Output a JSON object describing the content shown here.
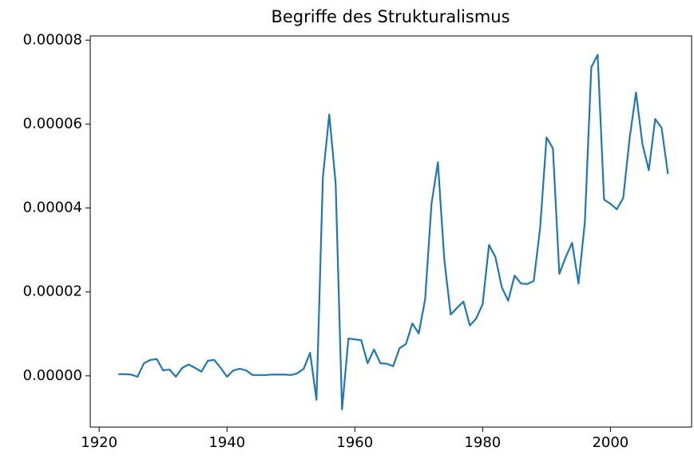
{
  "chart_data": {
    "type": "line",
    "title": "Begriffe des Strukturalismus",
    "x": [
      1923,
      1924,
      1925,
      1926,
      1927,
      1928,
      1929,
      1930,
      1931,
      1932,
      1933,
      1934,
      1935,
      1936,
      1937,
      1938,
      1939,
      1940,
      1941,
      1942,
      1943,
      1944,
      1945,
      1946,
      1947,
      1948,
      1949,
      1950,
      1951,
      1952,
      1953,
      1954,
      1955,
      1956,
      1957,
      1958,
      1959,
      1960,
      1961,
      1962,
      1963,
      1964,
      1965,
      1966,
      1967,
      1968,
      1969,
      1970,
      1971,
      1972,
      1973,
      1974,
      1975,
      1976,
      1977,
      1978,
      1979,
      1980,
      1981,
      1982,
      1983,
      1984,
      1985,
      1986,
      1987,
      1988,
      1989,
      1990,
      1991,
      1992,
      1993,
      1994,
      1995,
      1996,
      1997,
      1998,
      1999,
      2000,
      2001,
      2002,
      2003,
      2004,
      2005,
      2006,
      2007,
      2008,
      2009
    ],
    "series": [
      {
        "color": "#1f77b4",
        "values": [
          4e-07,
          4e-07,
          3e-07,
          -2e-07,
          3e-06,
          3.8e-06,
          4e-06,
          1.3e-06,
          1.5e-06,
          -2e-07,
          1.9e-06,
          2.7e-06,
          1.9e-06,
          1e-06,
          3.6e-06,
          3.8e-06,
          1.9e-06,
          -2e-07,
          1.3e-06,
          1.7e-06,
          1.3e-06,
          2e-07,
          2e-07,
          2e-07,
          3e-07,
          3e-07,
          3e-07,
          2e-07,
          6e-07,
          1.7e-06,
          5.5e-06,
          -5.7e-06,
          4.73e-05,
          6.23e-05,
          4.58e-05,
          -8e-06,
          8.9e-06,
          8.7e-06,
          8.5e-06,
          3e-06,
          6.3e-06,
          3e-06,
          2.9e-06,
          2.3e-06,
          6.6e-06,
          7.6e-06,
          1.25e-05,
          1.01e-05,
          1.82e-05,
          4.1e-05,
          5.09e-05,
          2.77e-05,
          1.46e-05,
          1.62e-05,
          1.77e-05,
          1.2e-05,
          1.37e-05,
          1.71e-05,
          3.12e-05,
          2.83e-05,
          2.11e-05,
          1.79e-05,
          2.39e-05,
          2.2e-05,
          2.19e-05,
          2.26e-05,
          3.53e-05,
          5.68e-05,
          5.42e-05,
          2.43e-05,
          2.83e-05,
          3.17e-05,
          2.2e-05,
          3.67e-05,
          7.35e-05,
          7.65e-05,
          4.2e-05,
          4.1e-05,
          3.97e-05,
          4.24e-05,
          5.66e-05,
          6.75e-05,
          5.53e-05,
          4.9e-05,
          6.12e-05,
          5.91e-05,
          4.81e-05
        ]
      }
    ],
    "xlim": [
      1918.6,
      2012.7
    ],
    "ylim": [
      -1.22e-05,
      8.1e-05
    ],
    "xticks": [
      1920,
      1940,
      1960,
      1980,
      2000
    ],
    "yticks": [
      {
        "value": 0,
        "label": "0.00000"
      },
      {
        "value": 2e-05,
        "label": "0.00002"
      },
      {
        "value": 4e-05,
        "label": "0.00004"
      },
      {
        "value": 6e-05,
        "label": "0.00006"
      },
      {
        "value": 8e-05,
        "label": "0.00008"
      }
    ]
  }
}
